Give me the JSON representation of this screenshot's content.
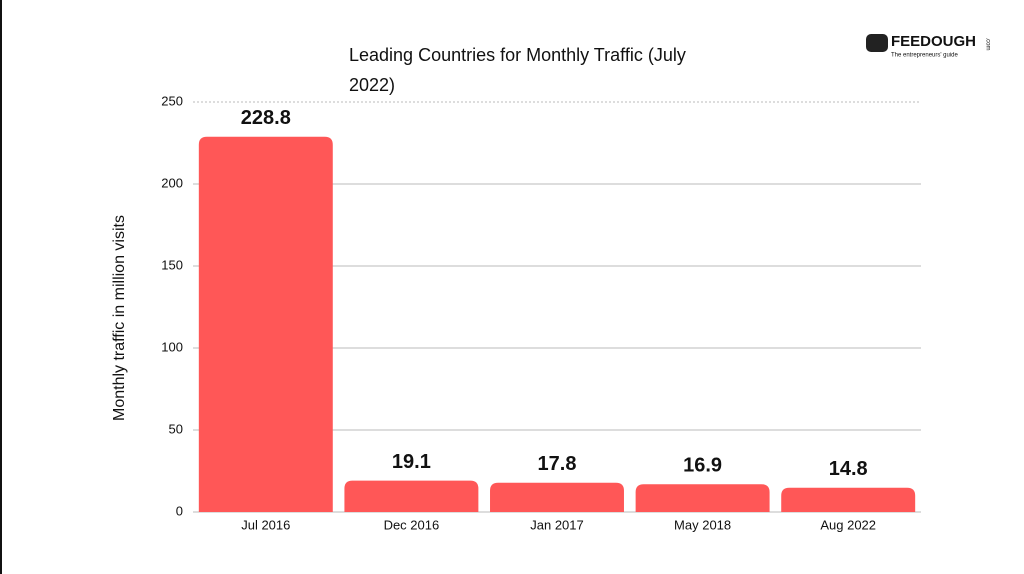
{
  "chart_data": {
    "type": "bar",
    "title": "Leading Countries for Monthly Traffic (July 2022)",
    "y_label": "Monthly traffic in million visits",
    "categories": [
      "Jul 2016",
      "Dec 2016",
      "Jan 2017",
      "May 2018",
      "Aug 2022"
    ],
    "values": [
      228.8,
      19.1,
      17.8,
      16.9,
      14.8
    ],
    "color": "#ff5757",
    "ylim": [
      0,
      250
    ],
    "yticks": [
      0,
      50,
      100,
      150,
      200,
      250
    ],
    "grid": true,
    "logo": {
      "name": "FEEDOUGH",
      "suffix": ".com",
      "tagline": "The entrepreneurs' guide"
    }
  }
}
